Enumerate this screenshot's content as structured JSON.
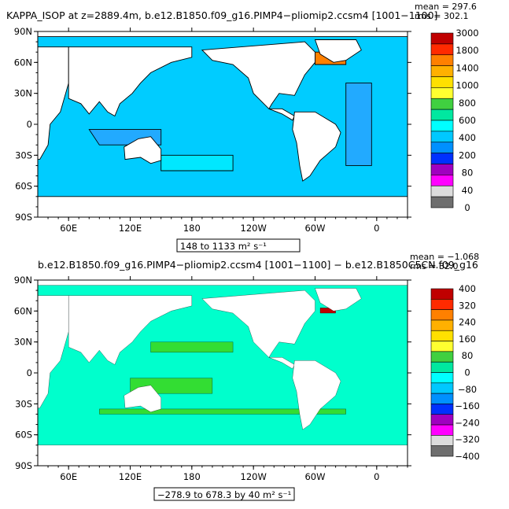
{
  "colors": {
    "land": "#ffffff",
    "coast": "#000000",
    "legend_outline": "#000000"
  },
  "top_panel": {
    "title": "KAPPA_ISOP at z=2889.4m, b.e12.B1850.f09_g16.PIMP4−pliomip2.ccsm4 [1001−1100]",
    "stat_mean": "mean = 297.6",
    "stat_rms": "rms = 302.1",
    "range_label": "148 to 1133 m² s⁻¹"
  },
  "bottom_panel": {
    "title": "b.e12.B1850.f09_g16.PIMP4−pliomip2.ccsm4 [1001−1100] − b.e12.B1850C5CN.f09_g16",
    "stat_mean": "mean = −1.068",
    "stat_rms": "rms = 32.0",
    "range_label": "−278.9 to 678.3 by 40 m² s⁻¹"
  },
  "chart_data": [
    {
      "type": "heatmap",
      "panel": "top",
      "title": "KAPPA_ISOP at z=2889.4m, b.e12.B1850.f09_g16.PIMP4−pliomip2.ccsm4 [1001−1100]",
      "x_ticks": [
        "60E",
        "120E",
        "180",
        "120W",
        "60W",
        "0"
      ],
      "y_ticks": [
        "90N",
        "60N",
        "30N",
        "0",
        "30S",
        "60S",
        "90S"
      ],
      "colorbar": {
        "labels": [
          "3000",
          "1800",
          "1400",
          "1000",
          "800",
          "600",
          "400",
          "200",
          "80",
          "40",
          "0"
        ],
        "colors": [
          "#c00000",
          "#ff2a00",
          "#ff8000",
          "#ffb000",
          "#ffe000",
          "#ffff30",
          "#40d040",
          "#00e8a0",
          "#00ffff",
          "#00c8ff",
          "#0090ff",
          "#0030ff",
          "#a000c0",
          "#ff00ff",
          "#dcdcdc",
          "#6e6e6e"
        ]
      },
      "ocean_dominant": "#00ccff",
      "regions": [
        {
          "name": "Pacific/Southern",
          "color": "#00ccff"
        },
        {
          "name": "Indian/Atlantic shelves",
          "color": "#22aaff"
        },
        {
          "name": "North Atlantic high",
          "color": "#ff8000"
        }
      ]
    },
    {
      "type": "heatmap",
      "panel": "bottom",
      "title": "b.e12.B1850.f09_g16.PIMP4−pliomip2.ccsm4 [1001−1100] − b.e12.B1850C5CN.f09_g16",
      "x_ticks": [
        "60E",
        "120E",
        "180",
        "120W",
        "60W",
        "0"
      ],
      "y_ticks": [
        "90N",
        "60N",
        "30N",
        "0",
        "30S",
        "60S",
        "90S"
      ],
      "colorbar": {
        "labels": [
          "400",
          "320",
          "240",
          "160",
          "80",
          "0",
          "−80",
          "−160",
          "−240",
          "−320",
          "−400"
        ],
        "colors": [
          "#c00000",
          "#ff2a00",
          "#ff8000",
          "#ffb000",
          "#ffe000",
          "#ffff30",
          "#40d040",
          "#00e8a0",
          "#00ffff",
          "#00c8ff",
          "#0090ff",
          "#0030ff",
          "#a000c0",
          "#ff00ff",
          "#dcdcdc",
          "#6e6e6e"
        ]
      },
      "ocean_dominant": "#00ffcc",
      "regions": [
        {
          "name": "widespread near-zero",
          "color": "#00ffcc"
        },
        {
          "name": "positive bands",
          "color": "#33dd33"
        },
        {
          "name": "Labrador Sea extreme",
          "color": "#c00000"
        }
      ]
    }
  ]
}
